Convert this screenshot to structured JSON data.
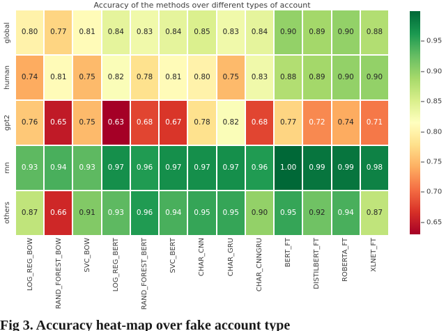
{
  "figure": {
    "title": "Accuracy of the methods over different types of account",
    "caption": "Fig 3. Accuracy heat-map over fake account type"
  },
  "chart_data": {
    "type": "heatmap",
    "title": "Accuracy of the methods over different types of account",
    "rows": [
      "global",
      "human",
      "gpt2",
      "rnn",
      "others"
    ],
    "columns": [
      "LOG_REG_BOW",
      "RAND_FOREST_BOW",
      "SVC_BOW",
      "LOG_REG_BERT",
      "RAND_FOREST_BERT",
      "SVC_BERT",
      "CHAR_CNN",
      "CHAR_GRU",
      "CHAR_CNNGRU",
      "BERT_FT",
      "DISTILBERT_FT",
      "ROBERTA_FT",
      "XLNET_FT"
    ],
    "values": [
      [
        0.8,
        0.77,
        0.81,
        0.84,
        0.83,
        0.84,
        0.85,
        0.83,
        0.84,
        0.9,
        0.89,
        0.9,
        0.88
      ],
      [
        0.74,
        0.81,
        0.75,
        0.82,
        0.78,
        0.81,
        0.8,
        0.75,
        0.83,
        0.88,
        0.89,
        0.9,
        0.9
      ],
      [
        0.76,
        0.65,
        0.75,
        0.63,
        0.68,
        0.67,
        0.78,
        0.82,
        0.68,
        0.77,
        0.72,
        0.74,
        0.71
      ],
      [
        0.93,
        0.94,
        0.93,
        0.97,
        0.96,
        0.97,
        0.97,
        0.97,
        0.96,
        1.0,
        0.99,
        0.99,
        0.98
      ],
      [
        0.87,
        0.66,
        0.91,
        0.93,
        0.96,
        0.94,
        0.95,
        0.95,
        0.9,
        0.95,
        0.92,
        0.94,
        0.87
      ]
    ],
    "vmin": 0.63,
    "vmax": 1.0,
    "colormap": "RdYlGn",
    "colormap_anchors": [
      "#a50026",
      "#d73027",
      "#f46d43",
      "#fdae61",
      "#fee08b",
      "#ffffbf",
      "#d9ef8b",
      "#a6d96a",
      "#66bd63",
      "#1a9850",
      "#006837"
    ],
    "annotation_decimals": 2,
    "annotation_dark_color": "#262626",
    "annotation_light_color": "#ffffff",
    "colorbar_ticks": [
      0.95,
      0.9,
      0.85,
      0.8,
      0.75,
      0.7,
      0.65
    ],
    "colorbar_position": "right",
    "grid_line_color": "#ffffff"
  }
}
